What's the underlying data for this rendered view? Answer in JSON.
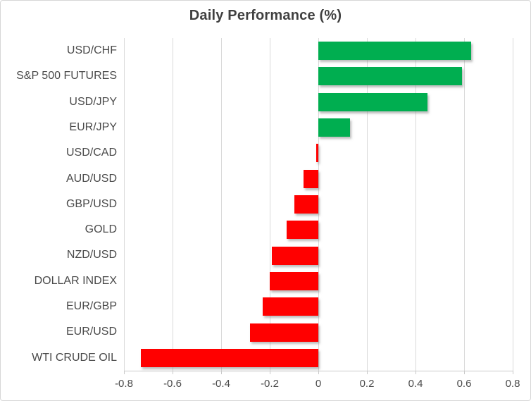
{
  "chart_data": {
    "type": "bar",
    "orientation": "horizontal",
    "title": "Daily Performance (%)",
    "categories": [
      "USD/CHF",
      "S&P 500 FUTURES",
      "USD/JPY",
      "EUR/JPY",
      "USD/CAD",
      "AUD/USD",
      "GBP/USD",
      "GOLD",
      "NZD/USD",
      "DOLLAR INDEX",
      "EUR/GBP",
      "EUR/USD",
      "WTI CRUDE OIL"
    ],
    "values": [
      0.63,
      0.59,
      0.45,
      0.13,
      -0.01,
      -0.06,
      -0.1,
      -0.13,
      -0.19,
      -0.2,
      -0.23,
      -0.28,
      -0.73
    ],
    "xlim": [
      -0.8,
      0.8
    ],
    "x_ticks": [
      -0.8,
      -0.6,
      -0.4,
      -0.2,
      0,
      0.2,
      0.4,
      0.6,
      0.8
    ],
    "x_tick_labels": [
      "-0.8",
      "-0.6",
      "-0.4",
      "-0.2",
      "0",
      "0.2",
      "0.4",
      "0.6",
      "0.8"
    ],
    "grid": true,
    "legend": false,
    "xlabel": "",
    "ylabel": ""
  },
  "colors": {
    "positive": "#00AE50",
    "negative": "#FF0000",
    "gridline": "#d9d9d9",
    "text": "#4a4a4a",
    "title_text": "#404040",
    "background": "#ffffff"
  }
}
